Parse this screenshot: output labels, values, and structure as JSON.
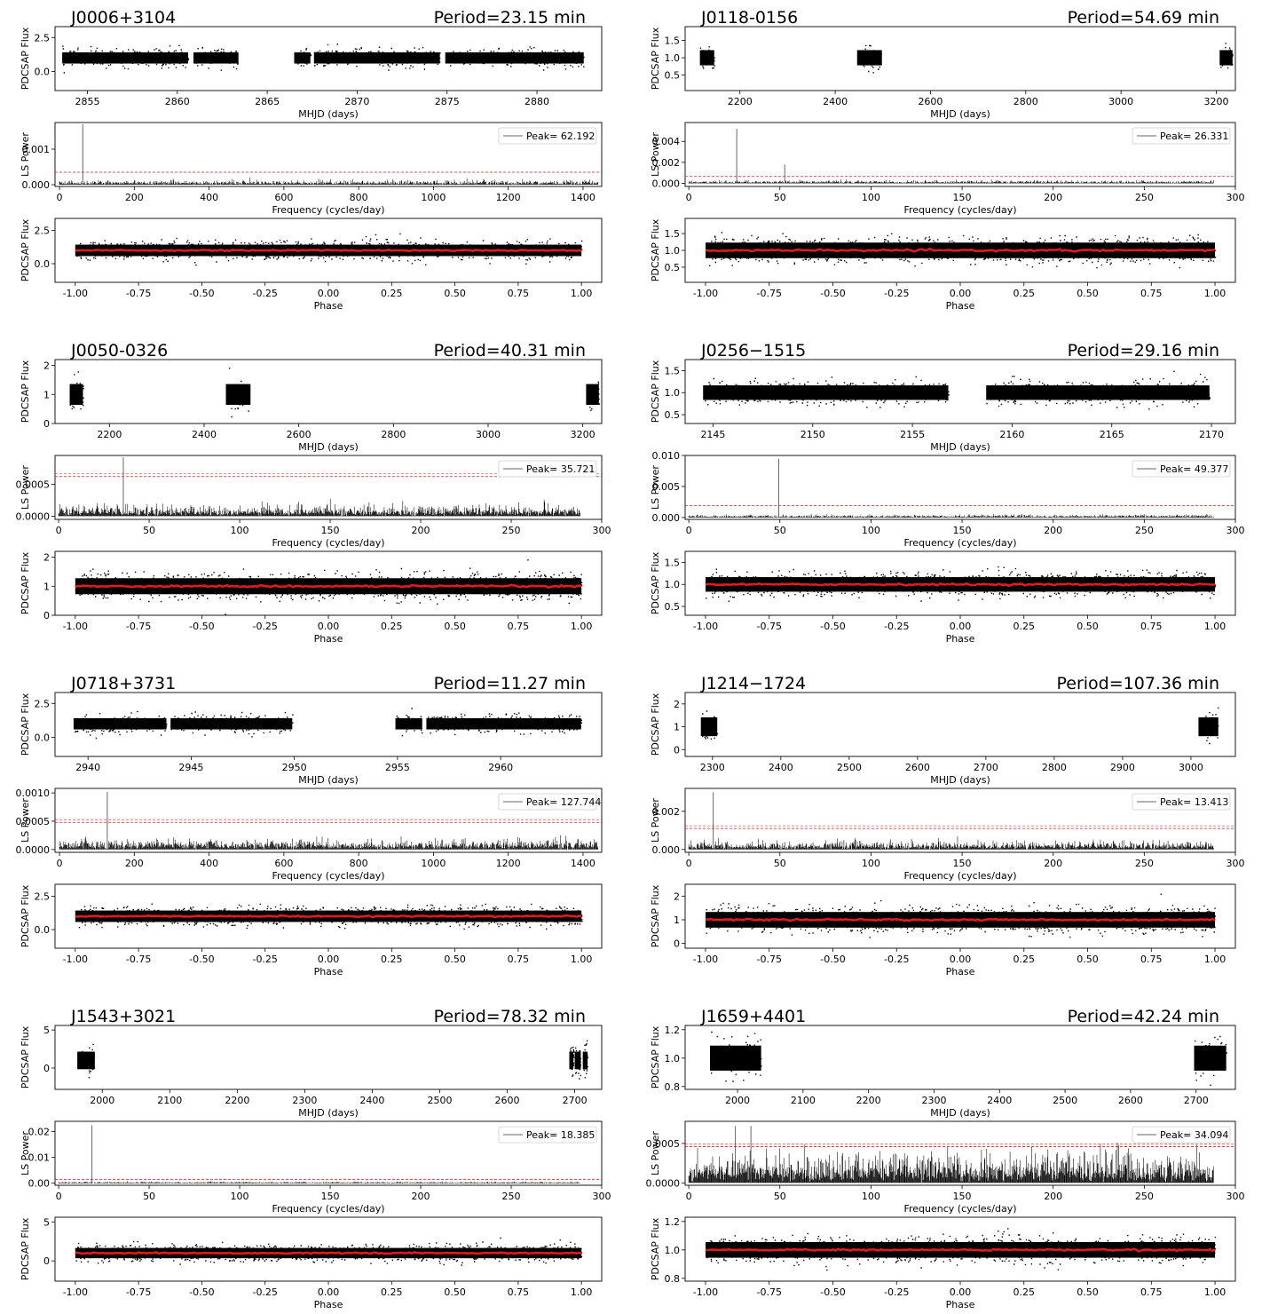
{
  "page": {
    "background": "#ffffff",
    "ink": "#000000",
    "fold_color": "#e41a1c",
    "threshold_color": "#e41a1c"
  },
  "labels": {
    "flux": "PDCSAP Flux",
    "ls": "LS Power",
    "mhjd": "MHJD (days)",
    "freq": "Frequency (cycles/day)",
    "phase": "Phase",
    "period_prefix": "Period=",
    "period_unit": " min",
    "peak_prefix": "Peak="
  },
  "chart_data": [
    {
      "name": "J0006+3104",
      "period_min": "23.15",
      "lightcurve": {
        "type": "scatter",
        "xlim": [
          2853.2,
          2883.6
        ],
        "ylim": [
          -1.4,
          3.3
        ],
        "xticks": [
          2855,
          2860,
          2865,
          2870,
          2875,
          2880
        ],
        "yticks": [
          "0.0",
          "2.5"
        ],
        "segments": [
          [
            2853.6,
            2860.6
          ],
          [
            2860.9,
            2863.4
          ],
          [
            2866.5,
            2867.4
          ],
          [
            2867.6,
            2874.6
          ],
          [
            2874.9,
            2882.6
          ]
        ],
        "center": 1.0,
        "spread": 0.75
      },
      "periodogram": {
        "type": "line",
        "xlim": [
          -12,
          1450
        ],
        "ylim": [
          -5e-05,
          0.00175
        ],
        "xticks": [
          0,
          200,
          400,
          600,
          800,
          1000,
          1200,
          1400
        ],
        "yticks": [
          "0.000",
          "0.001"
        ],
        "xmax": 1440,
        "peak_freq": 62.192,
        "peak_power": 0.0017,
        "peak_label": "62.192",
        "noise": 8e-05,
        "threshold": 0.00035,
        "threshold_double": false
      },
      "folded": {
        "type": "scatter",
        "xlim": [
          -1.08,
          1.08
        ],
        "ylim": [
          -1.4,
          3.4
        ],
        "xticks": [
          "-1.00",
          "-0.75",
          "-0.50",
          "-0.25",
          "0.00",
          "0.25",
          "0.50",
          "0.75",
          "1.00"
        ],
        "yticks": [
          "0.0",
          "2.5"
        ],
        "center": 1.0,
        "spread": 0.78
      }
    },
    {
      "name": "J0118-0156",
      "period_min": "54.69",
      "lightcurve": {
        "type": "scatter",
        "xlim": [
          2085,
          3240
        ],
        "ylim": [
          0.05,
          1.9
        ],
        "xticks": [
          2200,
          2400,
          2600,
          2800,
          3000,
          3200
        ],
        "yticks": [
          "0.5",
          "1.0",
          "1.5"
        ],
        "segments": [
          [
            2116,
            2146
          ],
          [
            2446,
            2498
          ],
          [
            3207,
            3234
          ]
        ],
        "center": 1.0,
        "spread": 0.4
      },
      "periodogram": {
        "type": "line",
        "xlim": [
          -2,
          300
        ],
        "ylim": [
          -0.0003,
          0.0058
        ],
        "xticks": [
          0,
          50,
          100,
          150,
          200,
          250,
          300
        ],
        "yticks": [
          "0.000",
          "0.002",
          "0.004"
        ],
        "xmax": 288,
        "peak_freq": 26.331,
        "peak_power": 0.0052,
        "peak_label": "26.331",
        "harmonic": 52.66,
        "harmonic_power": 0.0018,
        "noise": 0.00018,
        "threshold": 0.00065,
        "threshold_double": false
      },
      "folded": {
        "type": "scatter",
        "xlim": [
          -1.08,
          1.08
        ],
        "ylim": [
          0.05,
          1.95
        ],
        "xticks": [
          "-1.00",
          "-0.75",
          "-0.50",
          "-0.25",
          "0.00",
          "0.25",
          "0.50",
          "0.75",
          "1.00"
        ],
        "yticks": [
          "0.5",
          "1.0",
          "1.5"
        ],
        "center": 1.0,
        "spread": 0.42
      }
    },
    {
      "name": "J0050-0326",
      "period_min": "40.31",
      "lightcurve": {
        "type": "scatter",
        "xlim": [
          2085,
          3240
        ],
        "ylim": [
          0,
          2.2
        ],
        "xticks": [
          2200,
          2400,
          2600,
          2800,
          3000,
          3200
        ],
        "yticks": [
          "0",
          "1",
          "2"
        ],
        "segments": [
          [
            2116,
            2144
          ],
          [
            2446,
            2498
          ],
          [
            3207,
            3234
          ]
        ],
        "center": 1.0,
        "spread": 0.65
      },
      "periodogram": {
        "type": "line",
        "xlim": [
          -2,
          300
        ],
        "ylim": [
          -5e-05,
          0.00095
        ],
        "xticks": [
          0,
          50,
          100,
          150,
          200,
          250,
          300
        ],
        "yticks": [
          "0.0000",
          "0.0005"
        ],
        "xmax": 288,
        "peak_freq": 35.721,
        "peak_power": 0.00092,
        "peak_label": "35.721",
        "noise": 0.00012,
        "threshold": 0.00062,
        "threshold_double": true
      },
      "folded": {
        "type": "scatter",
        "xlim": [
          -1.08,
          1.08
        ],
        "ylim": [
          0,
          2.2
        ],
        "xticks": [
          "-1.00",
          "-0.75",
          "-0.50",
          "-0.25",
          "0.00",
          "0.25",
          "0.50",
          "0.75",
          "1.00"
        ],
        "yticks": [
          "0",
          "1",
          "2"
        ],
        "center": 1.0,
        "spread": 0.5
      }
    },
    {
      "name": "J0256−1515",
      "period_min": "29.16",
      "lightcurve": {
        "type": "scatter",
        "xlim": [
          2143.6,
          2171.2
        ],
        "ylim": [
          0.3,
          1.75
        ],
        "xticks": [
          2145,
          2150,
          2155,
          2160,
          2165,
          2170
        ],
        "yticks": [
          "0.5",
          "1.0",
          "1.5"
        ],
        "segments": [
          [
            2144.5,
            2156.8
          ],
          [
            2158.7,
            2169.9
          ]
        ],
        "center": 1.0,
        "spread": 0.3
      },
      "periodogram": {
        "type": "line",
        "xlim": [
          -2,
          300
        ],
        "ylim": [
          -0.0003,
          0.01
        ],
        "xticks": [
          0,
          50,
          100,
          150,
          200,
          250,
          300
        ],
        "yticks": [
          "0.000",
          "0.005",
          "0.010"
        ],
        "xmax": 288,
        "peak_freq": 49.377,
        "peak_power": 0.0095,
        "peak_label": "49.377",
        "noise": 0.0003,
        "threshold": 0.0019,
        "threshold_double": false
      },
      "folded": {
        "type": "scatter",
        "xlim": [
          -1.08,
          1.08
        ],
        "ylim": [
          0.3,
          1.75
        ],
        "xticks": [
          "-1.00",
          "-0.75",
          "-0.50",
          "-0.25",
          "0.00",
          "0.25",
          "0.50",
          "0.75",
          "1.00"
        ],
        "yticks": [
          "0.5",
          "1.0",
          "1.5"
        ],
        "center": 1.0,
        "spread": 0.3
      }
    },
    {
      "name": "J0718+3731",
      "period_min": "11.27",
      "lightcurve": {
        "type": "scatter",
        "xlim": [
          2938.4,
          2964.9
        ],
        "ylim": [
          -1.4,
          3.3
        ],
        "xticks": [
          2940,
          2945,
          2950,
          2955,
          2960
        ],
        "yticks": [
          "0.0",
          "2.5"
        ],
        "segments": [
          [
            2939.3,
            2943.8
          ],
          [
            2944.0,
            2949.9
          ],
          [
            2954.9,
            2956.2
          ],
          [
            2956.4,
            2963.9
          ]
        ],
        "center": 1.0,
        "spread": 0.75
      },
      "periodogram": {
        "type": "line",
        "xlim": [
          -12,
          1450
        ],
        "ylim": [
          -5e-05,
          0.00108
        ],
        "xticks": [
          0,
          200,
          400,
          600,
          800,
          1000,
          1200,
          1400
        ],
        "yticks": [
          "0.0000",
          "0.0005",
          "0.0010"
        ],
        "xmax": 1440,
        "peak_freq": 127.744,
        "peak_power": 0.00102,
        "peak_label": "127.744",
        "noise": 0.00012,
        "threshold": 0.00048,
        "threshold_double": true
      },
      "folded": {
        "type": "scatter",
        "xlim": [
          -1.08,
          1.08
        ],
        "ylim": [
          -1.4,
          3.4
        ],
        "xticks": [
          "-1.00",
          "-0.75",
          "-0.50",
          "-0.25",
          "0.00",
          "0.25",
          "0.50",
          "0.75",
          "1.00"
        ],
        "yticks": [
          "0.0",
          "2.5"
        ],
        "center": 1.0,
        "spread": 0.78
      }
    },
    {
      "name": "J1214−1724",
      "period_min": "107.36",
      "lightcurve": {
        "type": "scatter",
        "xlim": [
          2260,
          3065
        ],
        "ylim": [
          -0.3,
          2.5
        ],
        "xticks": [
          2300,
          2400,
          2500,
          2600,
          2700,
          2800,
          2900,
          3000
        ],
        "yticks": [
          "0",
          "1",
          "2"
        ],
        "segments": [
          [
            2283,
            2307
          ],
          [
            3011,
            3040
          ]
        ],
        "center": 1.0,
        "spread": 0.75
      },
      "periodogram": {
        "type": "line",
        "xlim": [
          -2,
          300
        ],
        "ylim": [
          -0.00015,
          0.0032
        ],
        "xticks": [
          0,
          50,
          100,
          150,
          200,
          250,
          300
        ],
        "yticks": [
          "0.000",
          "0.002"
        ],
        "xmax": 288,
        "peak_freq": 13.413,
        "peak_power": 0.003,
        "peak_label": "13.413",
        "noise": 0.0003,
        "threshold": 0.0011,
        "threshold_double": true
      },
      "folded": {
        "type": "scatter",
        "xlim": [
          -1.08,
          1.08
        ],
        "ylim": [
          -0.2,
          2.5
        ],
        "xticks": [
          "-1.00",
          "-0.75",
          "-0.50",
          "-0.25",
          "0.00",
          "0.25",
          "0.50",
          "0.75",
          "1.00"
        ],
        "yticks": [
          "0",
          "1",
          "2"
        ],
        "center": 1.0,
        "spread": 0.6
      }
    },
    {
      "name": "J1543+3021",
      "period_min": "78.32",
      "lightcurve": {
        "type": "scatter",
        "xlim": [
          1930,
          2740
        ],
        "ylim": [
          -2.8,
          5.6
        ],
        "xticks": [
          2000,
          2100,
          2200,
          2300,
          2400,
          2500,
          2600,
          2700
        ],
        "yticks": [
          "0",
          "5"
        ],
        "segments": [
          [
            1963,
            1989
          ],
          [
            2692,
            2698
          ],
          [
            2700,
            2709
          ],
          [
            2712,
            2719
          ]
        ],
        "center": 1.0,
        "spread": 2.1
      },
      "periodogram": {
        "type": "line",
        "xlim": [
          -2,
          300
        ],
        "ylim": [
          -0.0008,
          0.024
        ],
        "xticks": [
          0,
          50,
          100,
          150,
          200,
          250,
          300
        ],
        "yticks": [
          "0.00",
          "0.01",
          "0.02"
        ],
        "xmax": 288,
        "peak_freq": 18.385,
        "peak_power": 0.0225,
        "peak_label": "18.385",
        "noise": 0.0004,
        "threshold": 0.0015,
        "threshold_double": false
      },
      "folded": {
        "type": "scatter",
        "xlim": [
          -1.08,
          1.08
        ],
        "ylim": [
          -2.6,
          5.6
        ],
        "xticks": [
          "-1.00",
          "-0.75",
          "-0.50",
          "-0.25",
          "0.00",
          "0.25",
          "0.50",
          "0.75",
          "1.00"
        ],
        "yticks": [
          "0",
          "5"
        ],
        "center": 1.0,
        "spread": 1.2
      }
    },
    {
      "name": "J1659+4401",
      "period_min": "42.24",
      "lightcurve": {
        "type": "scatter",
        "xlim": [
          1920,
          2760
        ],
        "ylim": [
          0.78,
          1.23
        ],
        "xticks": [
          2000,
          2100,
          2200,
          2300,
          2400,
          2500,
          2600,
          2700
        ],
        "yticks": [
          "0.8",
          "1.0",
          "1.2"
        ],
        "segments": [
          [
            1958,
            2036
          ],
          [
            2697,
            2746
          ]
        ],
        "center": 1.0,
        "spread": 0.16
      },
      "periodogram": {
        "type": "line",
        "xlim": [
          -2,
          300
        ],
        "ylim": [
          -3e-05,
          0.00078
        ],
        "xticks": [
          0,
          50,
          100,
          150,
          200,
          250,
          300
        ],
        "yticks": [
          "0.0000",
          "0.0005"
        ],
        "xmax": 288,
        "peak_freq": 34.094,
        "peak_power": 0.00072,
        "peak_label": "34.094",
        "noise": 0.00026,
        "threshold": 0.00046,
        "threshold_double": true
      },
      "folded": {
        "type": "scatter",
        "xlim": [
          -1.08,
          1.08
        ],
        "ylim": [
          0.78,
          1.23
        ],
        "xticks": [
          "-1.00",
          "-0.75",
          "-0.50",
          "-0.25",
          "0.00",
          "0.25",
          "0.50",
          "0.75",
          "1.00"
        ],
        "yticks": [
          "0.8",
          "1.0",
          "1.2"
        ],
        "center": 1.0,
        "spread": 0.1
      }
    }
  ]
}
